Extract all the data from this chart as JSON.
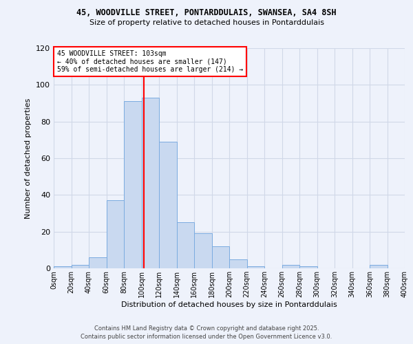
{
  "title1": "45, WOODVILLE STREET, PONTARDDULAIS, SWANSEA, SA4 8SH",
  "title2": "Size of property relative to detached houses in Pontarddulais",
  "xlabel": "Distribution of detached houses by size in Pontarddulais",
  "ylabel": "Number of detached properties",
  "bin_edges": [
    0,
    20,
    40,
    60,
    80,
    100,
    120,
    140,
    160,
    180,
    200,
    220,
    240,
    260,
    280,
    300,
    320,
    340,
    360,
    380,
    400
  ],
  "bar_values": [
    1,
    2,
    6,
    37,
    91,
    93,
    69,
    25,
    19,
    12,
    5,
    1,
    0,
    2,
    1,
    0,
    0,
    0,
    2,
    0
  ],
  "bar_color": "#c9d9f0",
  "bar_edge_color": "#7aabe0",
  "grid_color": "#d0d8e8",
  "bg_color": "#eef2fb",
  "vline_x": 103,
  "vline_color": "red",
  "annotation_text": "45 WOODVILLE STREET: 103sqm\n← 40% of detached houses are smaller (147)\n59% of semi-detached houses are larger (214) →",
  "annotation_box_color": "white",
  "annotation_box_edge": "red",
  "ylim": [
    0,
    120
  ],
  "yticks": [
    0,
    20,
    40,
    60,
    80,
    100,
    120
  ],
  "footer1": "Contains HM Land Registry data © Crown copyright and database right 2025.",
  "footer2": "Contains public sector information licensed under the Open Government Licence v3.0."
}
